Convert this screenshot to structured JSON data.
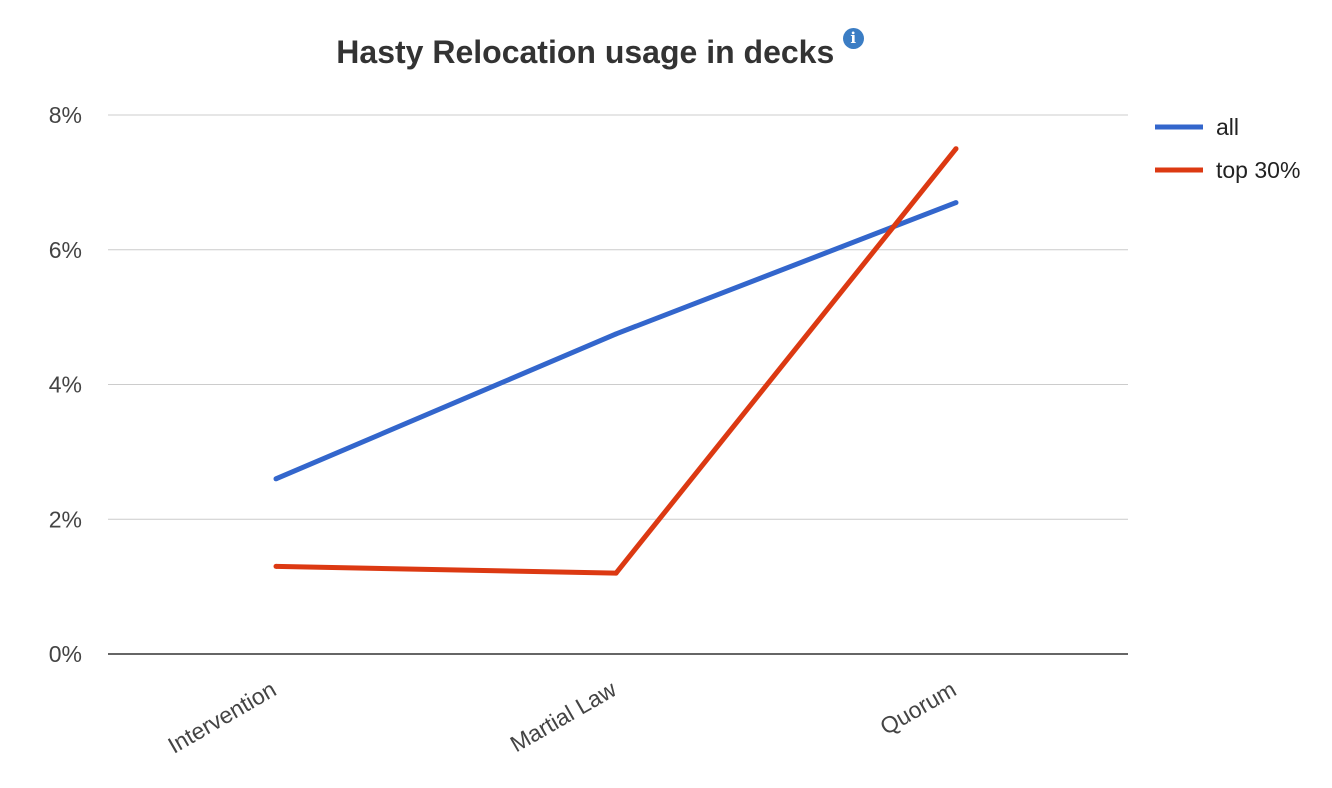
{
  "title": "Hasty Relocation usage in decks",
  "info_icon": "info-icon",
  "info_icon_glyph": "i",
  "info_icon_color": "#3b7dc4",
  "chart_data": {
    "type": "line",
    "title": "Hasty Relocation usage in decks",
    "categories": [
      "Intervention",
      "Martial Law",
      "Quorum"
    ],
    "series": [
      {
        "name": "all",
        "color": "#3366cc",
        "values": [
          2.6,
          4.75,
          6.7
        ]
      },
      {
        "name": "top 30%",
        "color": "#dc3912",
        "values": [
          1.3,
          1.2,
          7.5
        ]
      }
    ],
    "yunit": "%",
    "ylim": [
      0,
      8
    ],
    "yticks": [
      0,
      2,
      4,
      6,
      8
    ],
    "ytick_labels": [
      "0%",
      "2%",
      "4%",
      "6%",
      "8%"
    ],
    "grid": true,
    "legend_position": "right",
    "xlabel": "",
    "ylabel": ""
  }
}
